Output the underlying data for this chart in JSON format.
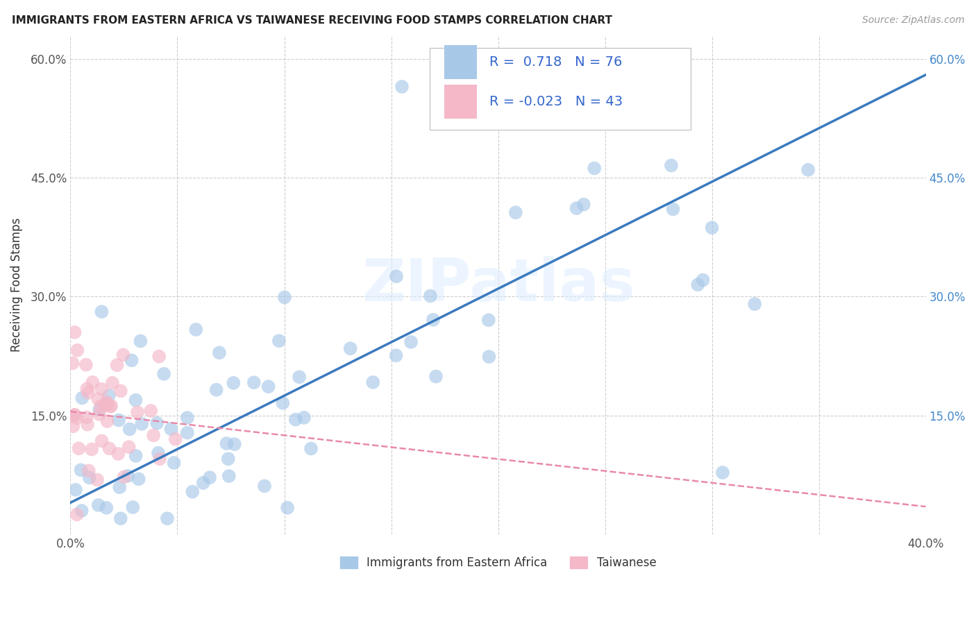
{
  "title": "IMMIGRANTS FROM EASTERN AFRICA VS TAIWANESE RECEIVING FOOD STAMPS CORRELATION CHART",
  "source": "Source: ZipAtlas.com",
  "ylabel": "Receiving Food Stamps",
  "xlim": [
    0.0,
    0.42
  ],
  "ylim": [
    -0.02,
    0.68
  ],
  "plot_xlim": [
    0.0,
    0.4
  ],
  "plot_ylim": [
    0.0,
    0.63
  ],
  "xticks": [
    0.0,
    0.05,
    0.1,
    0.15,
    0.2,
    0.25,
    0.3,
    0.35,
    0.4
  ],
  "yticks": [
    0.0,
    0.15,
    0.3,
    0.45,
    0.6
  ],
  "blue_R": "0.718",
  "blue_N": "76",
  "pink_R": "-0.023",
  "pink_N": "43",
  "blue_color": "#a8c8e8",
  "pink_color": "#f4b8c8",
  "blue_line_color": "#3a7abf",
  "pink_line_color": "#e88aaa",
  "grid_color": "#c8c8c8",
  "watermark": "ZIPatlas",
  "legend_text_color": "#3366cc",
  "legend_label_color": "#333333"
}
